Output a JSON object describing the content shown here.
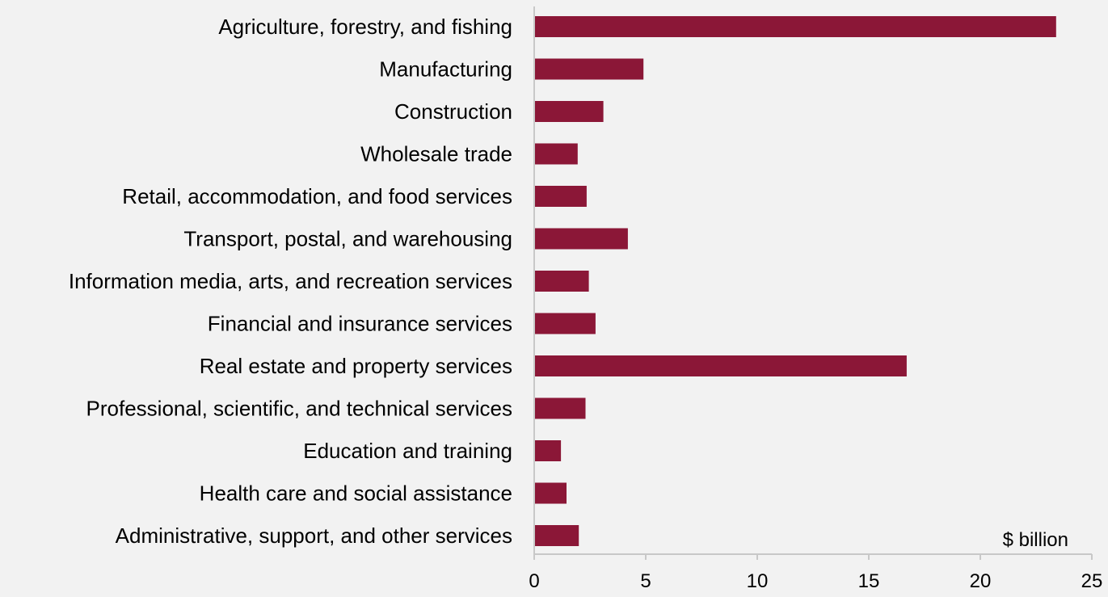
{
  "chart_data": {
    "type": "bar",
    "orientation": "horizontal",
    "title": "",
    "xlabel": "",
    "ylabel": "",
    "unit_label": "$ billion",
    "categories": [
      "Agriculture, forestry, and fishing",
      "Manufacturing",
      "Construction",
      "Wholesale trade",
      "Retail, accommodation, and food services",
      "Transport, postal, and warehousing",
      "Information media, arts, and recreation services",
      "Financial and insurance services",
      "Real estate and property services",
      "Professional, scientific, and technical services",
      "Education and training",
      "Health care and social assistance",
      "Administrative, support, and other services"
    ],
    "values": [
      23.4,
      4.9,
      3.1,
      1.95,
      2.35,
      4.2,
      2.45,
      2.75,
      16.7,
      2.3,
      1.2,
      1.45,
      2.0
    ],
    "xlim": [
      0,
      25
    ],
    "xticks": [
      "0",
      "5",
      "10",
      "15",
      "20",
      "25"
    ],
    "grid": false,
    "legend": "none",
    "colors": {
      "bar": "#8b1737",
      "axis": "#c8c8c8",
      "background": "#f2f2f2"
    }
  }
}
